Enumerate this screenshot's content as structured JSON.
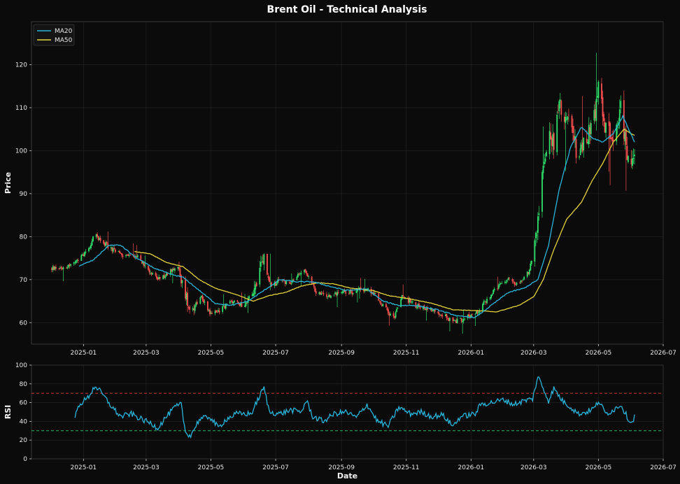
{
  "chart_data": [
    {
      "type": "candlestick",
      "title": "Brent Oil - Technical Analysis",
      "ylabel": "Price",
      "xlim": [
        "2024-11-13",
        "2026-07-01"
      ],
      "ylim": [
        55,
        130
      ],
      "y_ticks": [
        60,
        70,
        80,
        90,
        100,
        110,
        120
      ],
      "x_ticks": [
        "2025-01",
        "2025-03",
        "2025-05",
        "2025-07",
        "2025-09",
        "2025-11",
        "2026-01",
        "2026-03",
        "2026-05",
        "2026-07"
      ],
      "grid": true,
      "legend": "top-left",
      "colors": {
        "up": "#2ee26b",
        "down": "#ff4f4f",
        "ma20": "#29b5d9",
        "ma50": "#e5d43b",
        "background": "#0b0b0b",
        "grid": "#262626"
      },
      "ohlc_anchors": [
        [
          "2024-12-01",
          72.5
        ],
        [
          "2024-12-15",
          73
        ],
        [
          "2024-12-25",
          74
        ],
        [
          "2025-01-05",
          77
        ],
        [
          "2025-01-12",
          80.5
        ],
        [
          "2025-01-18",
          79
        ],
        [
          "2025-01-28",
          77
        ],
        [
          "2025-02-08",
          75.5
        ],
        [
          "2025-02-20",
          75.5
        ],
        [
          "2025-03-01",
          73
        ],
        [
          "2025-03-12",
          70
        ],
        [
          "2025-03-20",
          71
        ],
        [
          "2025-03-30",
          73.5
        ],
        [
          "2025-04-05",
          68
        ],
        [
          "2025-04-12",
          63
        ],
        [
          "2025-04-22",
          66
        ],
        [
          "2025-05-01",
          62
        ],
        [
          "2025-05-10",
          63
        ],
        [
          "2025-05-20",
          65
        ],
        [
          "2025-06-01",
          64
        ],
        [
          "2025-06-10",
          67
        ],
        [
          "2025-06-20",
          75
        ],
        [
          "2025-06-26",
          68
        ],
        [
          "2025-07-05",
          70
        ],
        [
          "2025-07-15",
          69
        ],
        [
          "2025-07-28",
          72.5
        ],
        [
          "2025-08-08",
          67
        ],
        [
          "2025-08-20",
          66
        ],
        [
          "2025-09-01",
          67.5
        ],
        [
          "2025-09-10",
          67
        ],
        [
          "2025-09-20",
          68
        ],
        [
          "2025-10-01",
          67
        ],
        [
          "2025-10-10",
          64
        ],
        [
          "2025-10-20",
          61
        ],
        [
          "2025-10-28",
          66
        ],
        [
          "2025-11-10",
          64
        ],
        [
          "2025-11-25",
          63
        ],
        [
          "2025-12-05",
          62
        ],
        [
          "2025-12-15",
          60
        ],
        [
          "2025-12-25",
          61
        ],
        [
          "2026-01-05",
          62
        ],
        [
          "2026-01-15",
          65
        ],
        [
          "2026-01-25",
          68
        ],
        [
          "2026-02-05",
          70
        ],
        [
          "2026-02-15",
          69
        ],
        [
          "2026-02-25",
          72
        ],
        [
          "2026-03-03",
          80
        ],
        [
          "2026-03-07",
          88
        ],
        [
          "2026-03-10",
          96
        ],
        [
          "2026-03-15",
          105
        ],
        [
          "2026-03-20",
          102
        ],
        [
          "2026-03-25",
          110
        ],
        [
          "2026-04-01",
          108
        ],
        [
          "2026-04-07",
          103
        ],
        [
          "2026-04-13",
          98
        ],
        [
          "2026-04-20",
          103
        ],
        [
          "2026-04-27",
          108
        ],
        [
          "2026-05-01",
          114
        ],
        [
          "2026-05-08",
          105
        ],
        [
          "2026-05-15",
          104
        ],
        [
          "2026-05-22",
          110
        ],
        [
          "2026-05-26",
          103
        ],
        [
          "2026-05-30",
          95
        ],
        [
          "2026-06-04",
          97
        ]
      ],
      "ma20_anchors": [
        [
          "2024-12-28",
          73.2
        ],
        [
          "2025-01-10",
          74.5
        ],
        [
          "2025-01-25",
          78
        ],
        [
          "2025-02-05",
          78
        ],
        [
          "2025-02-20",
          75
        ],
        [
          "2025-03-10",
          72.5
        ],
        [
          "2025-03-25",
          71.2
        ],
        [
          "2025-04-05",
          70.5
        ],
        [
          "2025-04-20",
          67.5
        ],
        [
          "2025-05-05",
          64.5
        ],
        [
          "2025-05-20",
          64
        ],
        [
          "2025-06-05",
          65
        ],
        [
          "2025-06-20",
          67.5
        ],
        [
          "2025-07-05",
          70
        ],
        [
          "2025-07-20",
          69.5
        ],
        [
          "2025-08-05",
          69.5
        ],
        [
          "2025-08-20",
          68.5
        ],
        [
          "2025-09-05",
          67.5
        ],
        [
          "2025-09-25",
          67.8
        ],
        [
          "2025-10-10",
          65
        ],
        [
          "2025-10-25",
          64
        ],
        [
          "2025-11-10",
          64
        ],
        [
          "2025-11-30",
          63
        ],
        [
          "2025-12-20",
          61.5
        ],
        [
          "2026-01-05",
          61.2
        ],
        [
          "2026-01-20",
          64
        ],
        [
          "2026-02-05",
          67
        ],
        [
          "2026-02-20",
          68
        ],
        [
          "2026-03-05",
          70
        ],
        [
          "2026-03-15",
          78
        ],
        [
          "2026-03-25",
          91
        ],
        [
          "2026-04-05",
          101
        ],
        [
          "2026-04-15",
          105.5
        ],
        [
          "2026-04-25",
          103
        ],
        [
          "2026-05-05",
          102
        ],
        [
          "2026-05-15",
          104
        ],
        [
          "2026-05-24",
          108
        ],
        [
          "2026-06-04",
          102
        ]
      ],
      "ma50_anchors": [
        [
          "2025-02-18",
          76.5
        ],
        [
          "2025-03-05",
          76
        ],
        [
          "2025-03-20",
          74
        ],
        [
          "2025-04-05",
          73
        ],
        [
          "2025-04-20",
          70
        ],
        [
          "2025-05-05",
          68
        ],
        [
          "2025-05-25",
          66.5
        ],
        [
          "2025-06-10",
          65
        ],
        [
          "2025-06-25",
          66.3
        ],
        [
          "2025-07-10",
          67
        ],
        [
          "2025-07-25",
          68.5
        ],
        [
          "2025-08-10",
          69.3
        ],
        [
          "2025-08-25",
          69
        ],
        [
          "2025-09-10",
          68
        ],
        [
          "2025-09-30",
          67.5
        ],
        [
          "2025-10-15",
          66.3
        ],
        [
          "2025-11-05",
          65.5
        ],
        [
          "2025-11-25",
          64.5
        ],
        [
          "2025-12-15",
          63
        ],
        [
          "2026-01-05",
          62.8
        ],
        [
          "2026-01-25",
          62.5
        ],
        [
          "2026-02-15",
          64
        ],
        [
          "2026-03-01",
          66
        ],
        [
          "2026-03-10",
          70
        ],
        [
          "2026-03-20",
          77
        ],
        [
          "2026-04-01",
          84
        ],
        [
          "2026-04-15",
          88
        ],
        [
          "2026-04-25",
          93
        ],
        [
          "2026-05-05",
          97
        ],
        [
          "2026-05-15",
          102
        ],
        [
          "2026-05-25",
          105
        ],
        [
          "2026-06-04",
          103.5
        ]
      ],
      "series": [
        {
          "name": "MA20",
          "color": "#29b5d9"
        },
        {
          "name": "MA50",
          "color": "#e5d43b"
        }
      ]
    },
    {
      "type": "line",
      "xlabel": "Date",
      "ylabel": "RSI",
      "xlim": [
        "2024-11-13",
        "2026-07-01"
      ],
      "ylim": [
        0,
        100
      ],
      "y_ticks": [
        0,
        20,
        40,
        60,
        80,
        100
      ],
      "x_ticks": [
        "2025-01",
        "2025-03",
        "2025-05",
        "2025-07",
        "2025-09",
        "2025-11",
        "2026-01",
        "2026-03",
        "2026-05",
        "2026-07"
      ],
      "reference_lines": [
        {
          "value": 70,
          "color": "#e03a3a"
        },
        {
          "value": 30,
          "color": "#2ecc71"
        }
      ],
      "rsi_anchors": [
        [
          "2024-12-24",
          45
        ],
        [
          "2024-12-28",
          58
        ],
        [
          "2025-01-05",
          65
        ],
        [
          "2025-01-12",
          78
        ],
        [
          "2025-01-18",
          70
        ],
        [
          "2025-01-28",
          55
        ],
        [
          "2025-02-05",
          45
        ],
        [
          "2025-02-15",
          48
        ],
        [
          "2025-02-25",
          42
        ],
        [
          "2025-03-05",
          38
        ],
        [
          "2025-03-12",
          33
        ],
        [
          "2025-03-20",
          45
        ],
        [
          "2025-03-28",
          55
        ],
        [
          "2025-04-03",
          58
        ],
        [
          "2025-04-07",
          28
        ],
        [
          "2025-04-12",
          25
        ],
        [
          "2025-04-20",
          42
        ],
        [
          "2025-04-30",
          45
        ],
        [
          "2025-05-08",
          33
        ],
        [
          "2025-05-15",
          42
        ],
        [
          "2025-05-25",
          48
        ],
        [
          "2025-06-08",
          48
        ],
        [
          "2025-06-15",
          65
        ],
        [
          "2025-06-20",
          76
        ],
        [
          "2025-06-25",
          50
        ],
        [
          "2025-07-05",
          48
        ],
        [
          "2025-07-15",
          52
        ],
        [
          "2025-07-25",
          50
        ],
        [
          "2025-07-30",
          62
        ],
        [
          "2025-08-05",
          45
        ],
        [
          "2025-08-15",
          40
        ],
        [
          "2025-08-25",
          48
        ],
        [
          "2025-09-05",
          50
        ],
        [
          "2025-09-15",
          44
        ],
        [
          "2025-09-25",
          58
        ],
        [
          "2025-10-05",
          40
        ],
        [
          "2025-10-15",
          35
        ],
        [
          "2025-10-25",
          55
        ],
        [
          "2025-11-05",
          48
        ],
        [
          "2025-11-15",
          50
        ],
        [
          "2025-11-25",
          45
        ],
        [
          "2025-12-05",
          47
        ],
        [
          "2025-12-15",
          35
        ],
        [
          "2025-12-22",
          45
        ],
        [
          "2026-01-05",
          48
        ],
        [
          "2026-01-10",
          58
        ],
        [
          "2026-01-20",
          60
        ],
        [
          "2026-02-01",
          63
        ],
        [
          "2026-02-10",
          58
        ],
        [
          "2026-02-20",
          62
        ],
        [
          "2026-02-28",
          64
        ],
        [
          "2026-03-05",
          88
        ],
        [
          "2026-03-10",
          75
        ],
        [
          "2026-03-15",
          62
        ],
        [
          "2026-03-20",
          75
        ],
        [
          "2026-03-28",
          62
        ],
        [
          "2026-04-05",
          55
        ],
        [
          "2026-04-12",
          48
        ],
        [
          "2026-04-20",
          50
        ],
        [
          "2026-04-28",
          55
        ],
        [
          "2026-05-01",
          62
        ],
        [
          "2026-05-08",
          48
        ],
        [
          "2026-05-15",
          52
        ],
        [
          "2026-05-22",
          58
        ],
        [
          "2026-05-28",
          45
        ],
        [
          "2026-06-01",
          38
        ],
        [
          "2026-06-04",
          45
        ]
      ],
      "series": [
        {
          "name": "RSI",
          "color": "#29b5d9"
        }
      ]
    }
  ]
}
